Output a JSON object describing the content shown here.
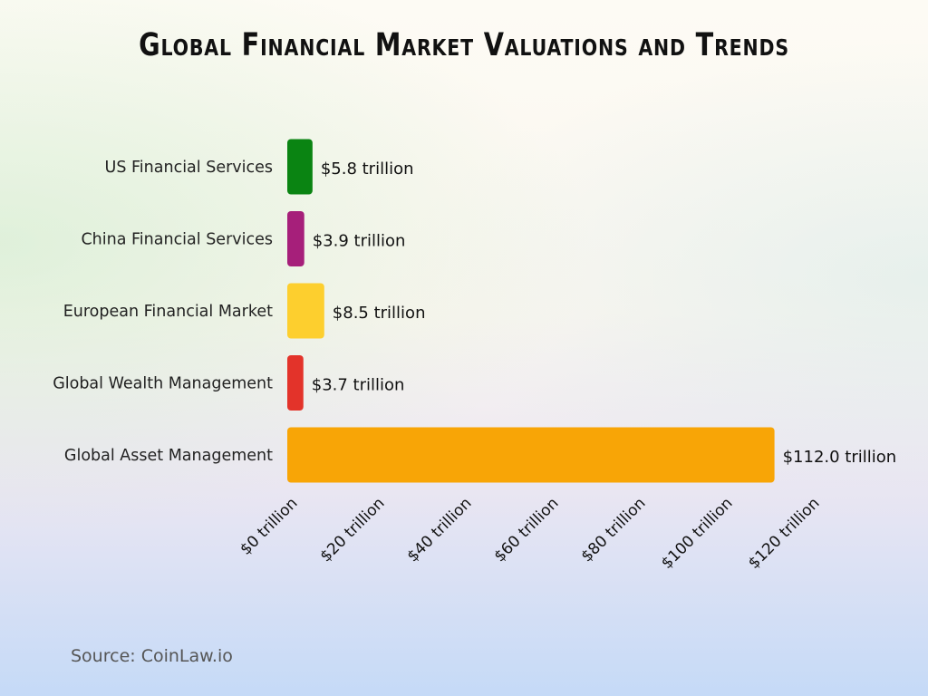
{
  "chart_data": {
    "type": "bar",
    "orientation": "horizontal",
    "title": "Global Financial Market Valuations and Trends",
    "categories": [
      "US Financial Services",
      "China Financial Services",
      "European Financial Market",
      "Global Wealth Management",
      "Global Asset Management"
    ],
    "values": [
      5.8,
      3.9,
      8.5,
      3.7,
      112.0
    ],
    "data_labels": [
      "$5.8 trillion",
      "$3.9 trillion",
      "$8.5 trillion",
      "$3.7 trillion",
      "$112.0 trillion"
    ],
    "colors": [
      "#0a8412",
      "#a61f7a",
      "#fdcf2e",
      "#e3332a",
      "#f8a506"
    ],
    "xticks": [
      0,
      20,
      40,
      60,
      80,
      100,
      120
    ],
    "xtick_labels": [
      "$0 trillion",
      "$20 trillion",
      "$40 trillion",
      "$60 trillion",
      "$80 trillion",
      "$100 trillion",
      "$120 trillion"
    ],
    "xlim": [
      0,
      120
    ],
    "xlabel": "",
    "ylabel": "",
    "grid": false
  },
  "source": "Source: CoinLaw.io"
}
